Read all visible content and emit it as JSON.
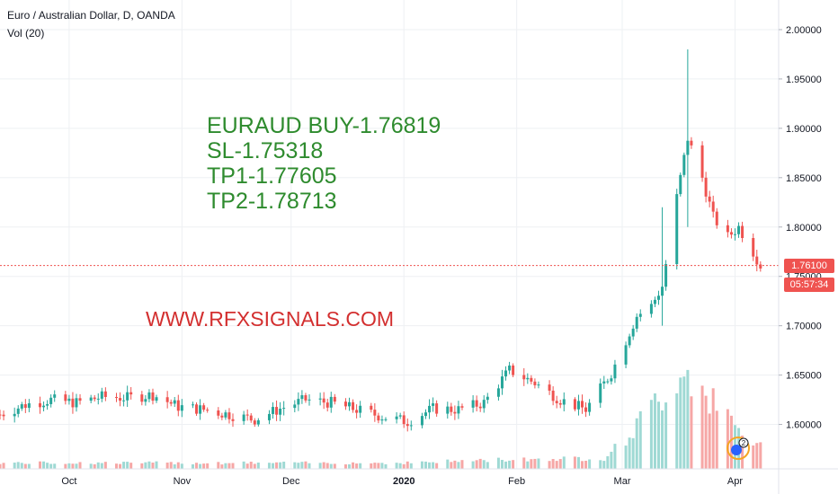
{
  "header": {
    "symbol_title": "Euro / Australian Dollar, D, OANDA",
    "volume_label": "Vol (20)"
  },
  "annotations": {
    "signal_lines": [
      "EURAUD BUY-1.76819",
      "SL-1.75318",
      "TP1-1.77605",
      "TP2-1.78713"
    ],
    "website": "WWW.RFXSIGNALS.COM"
  },
  "price_scale": {
    "current_price": "1.76100",
    "countdown": "05:57:34",
    "current_price_value": 1.761
  },
  "logo": {
    "badge_count": "2",
    "icon": "tradingview-logo-icon"
  },
  "colors": {
    "up": "#26a69a",
    "down": "#ef5350",
    "up_volume": "#9fd9d4",
    "down_volume": "#f6a7a6",
    "signal_text": "#2e8b2e",
    "website_text": "#d32f2f",
    "grid": "#eef0f3"
  },
  "chart_data": {
    "type": "candlestick",
    "title": "Euro / Australian Dollar, D, OANDA",
    "y_axis": {
      "range": [
        1.555,
        2.03
      ],
      "ticks": [
        1.6,
        1.65,
        1.7,
        1.75,
        1.8,
        1.85,
        1.9,
        1.95,
        2.0
      ],
      "tick_labels": [
        "1.60000",
        "1.65000",
        "1.70000",
        "1.75000",
        "1.80000",
        "1.85000",
        "1.90000",
        "1.95000",
        "2.00000"
      ]
    },
    "x_axis": {
      "range": [
        "2019-09-12",
        "2020-04-12"
      ],
      "ticks": [
        {
          "date": "2019-10-01",
          "label": "Oct",
          "bold": false
        },
        {
          "date": "2019-11-01",
          "label": "Nov",
          "bold": false
        },
        {
          "date": "2019-12-01",
          "label": "Dec",
          "bold": false
        },
        {
          "date": "2020-01-01",
          "label": "2020",
          "bold": true
        },
        {
          "date": "2020-02-01",
          "label": "Feb",
          "bold": false
        },
        {
          "date": "2020-03-01",
          "label": "Mar",
          "bold": false
        },
        {
          "date": "2020-04-01",
          "label": "Apr",
          "bold": false
        }
      ]
    },
    "grid": true,
    "current_price_line": 1.761,
    "close_path": [
      [
        "2019-09-12",
        1.61
      ],
      [
        "2019-09-19",
        1.62
      ],
      [
        "2019-09-26",
        1.625
      ],
      [
        "2019-10-03",
        1.622
      ],
      [
        "2019-10-10",
        1.628
      ],
      [
        "2019-10-17",
        1.627
      ],
      [
        "2019-10-24",
        1.63
      ],
      [
        "2019-10-31",
        1.618
      ],
      [
        "2019-11-07",
        1.615
      ],
      [
        "2019-11-14",
        1.61
      ],
      [
        "2019-11-21",
        1.605
      ],
      [
        "2019-11-28",
        1.616
      ],
      [
        "2019-12-05",
        1.625
      ],
      [
        "2019-12-12",
        1.622
      ],
      [
        "2019-12-19",
        1.615
      ],
      [
        "2019-12-26",
        1.608
      ],
      [
        "2020-01-02",
        1.603
      ],
      [
        "2020-01-09",
        1.616
      ],
      [
        "2020-01-16",
        1.615
      ],
      [
        "2020-01-23",
        1.622
      ],
      [
        "2020-01-30",
        1.655
      ],
      [
        "2020-02-06",
        1.642
      ],
      [
        "2020-02-13",
        1.625
      ],
      [
        "2020-02-20",
        1.615
      ],
      [
        "2020-02-27",
        1.652
      ],
      [
        "2020-03-05",
        1.71
      ],
      [
        "2020-03-09",
        1.72
      ],
      [
        "2020-03-12",
        1.74
      ],
      [
        "2020-03-16",
        1.83
      ],
      [
        "2020-03-19",
        1.89
      ],
      [
        "2020-03-23",
        1.85
      ],
      [
        "2020-03-26",
        1.81
      ],
      [
        "2020-03-30",
        1.79
      ],
      [
        "2020-04-02",
        1.8
      ],
      [
        "2020-04-06",
        1.775
      ],
      [
        "2020-04-08",
        1.761
      ]
    ],
    "spikes": [
      {
        "date": "2020-03-12",
        "high": 1.82,
        "low": 1.7
      },
      {
        "date": "2020-03-19",
        "high": 1.98,
        "low": 1.8
      }
    ],
    "volume_path": [
      [
        "2019-09-12",
        0.05
      ],
      [
        "2019-12-31",
        0.05
      ],
      [
        "2020-01-31",
        0.08
      ],
      [
        "2020-02-25",
        0.09
      ],
      [
        "2020-03-02",
        0.25
      ],
      [
        "2020-03-10",
        0.55
      ],
      [
        "2020-03-19",
        0.85
      ],
      [
        "2020-03-26",
        0.55
      ],
      [
        "2020-04-02",
        0.32
      ],
      [
        "2020-04-08",
        0.18
      ]
    ]
  }
}
